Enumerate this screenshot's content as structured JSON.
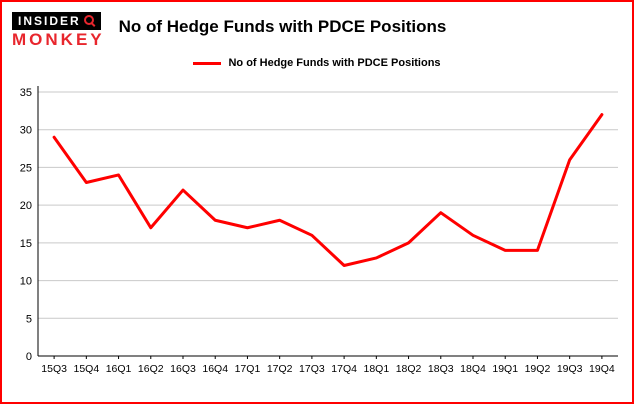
{
  "logo": {
    "line1": "INSIDER",
    "line2": "MONKEY"
  },
  "header": {
    "title": "No of Hedge Funds with PDCE Positions"
  },
  "legend": {
    "label": "No of Hedge Funds with PDCE Positions"
  },
  "colors": {
    "series": "#ff0000",
    "border": "#ff0000",
    "grid": "#c9c9c9",
    "axis": "#000000",
    "logo_red": "#e8262d",
    "text": "#000000"
  },
  "chart_data": {
    "type": "line",
    "title": "No of Hedge Funds with PDCE Positions",
    "categories": [
      "15Q3",
      "15Q4",
      "16Q1",
      "16Q2",
      "16Q3",
      "16Q4",
      "17Q1",
      "17Q2",
      "17Q3",
      "17Q4",
      "18Q1",
      "18Q2",
      "18Q3",
      "18Q4",
      "19Q1",
      "19Q2",
      "19Q3",
      "19Q4"
    ],
    "values": [
      29,
      23,
      24,
      17,
      22,
      18,
      17,
      18,
      16,
      12,
      13,
      15,
      19,
      16,
      14,
      14,
      26,
      32
    ],
    "xlabel": "",
    "ylabel": "",
    "ylim": [
      0,
      35
    ],
    "ytick_step": 5,
    "grid": true,
    "legend_position": "top"
  }
}
